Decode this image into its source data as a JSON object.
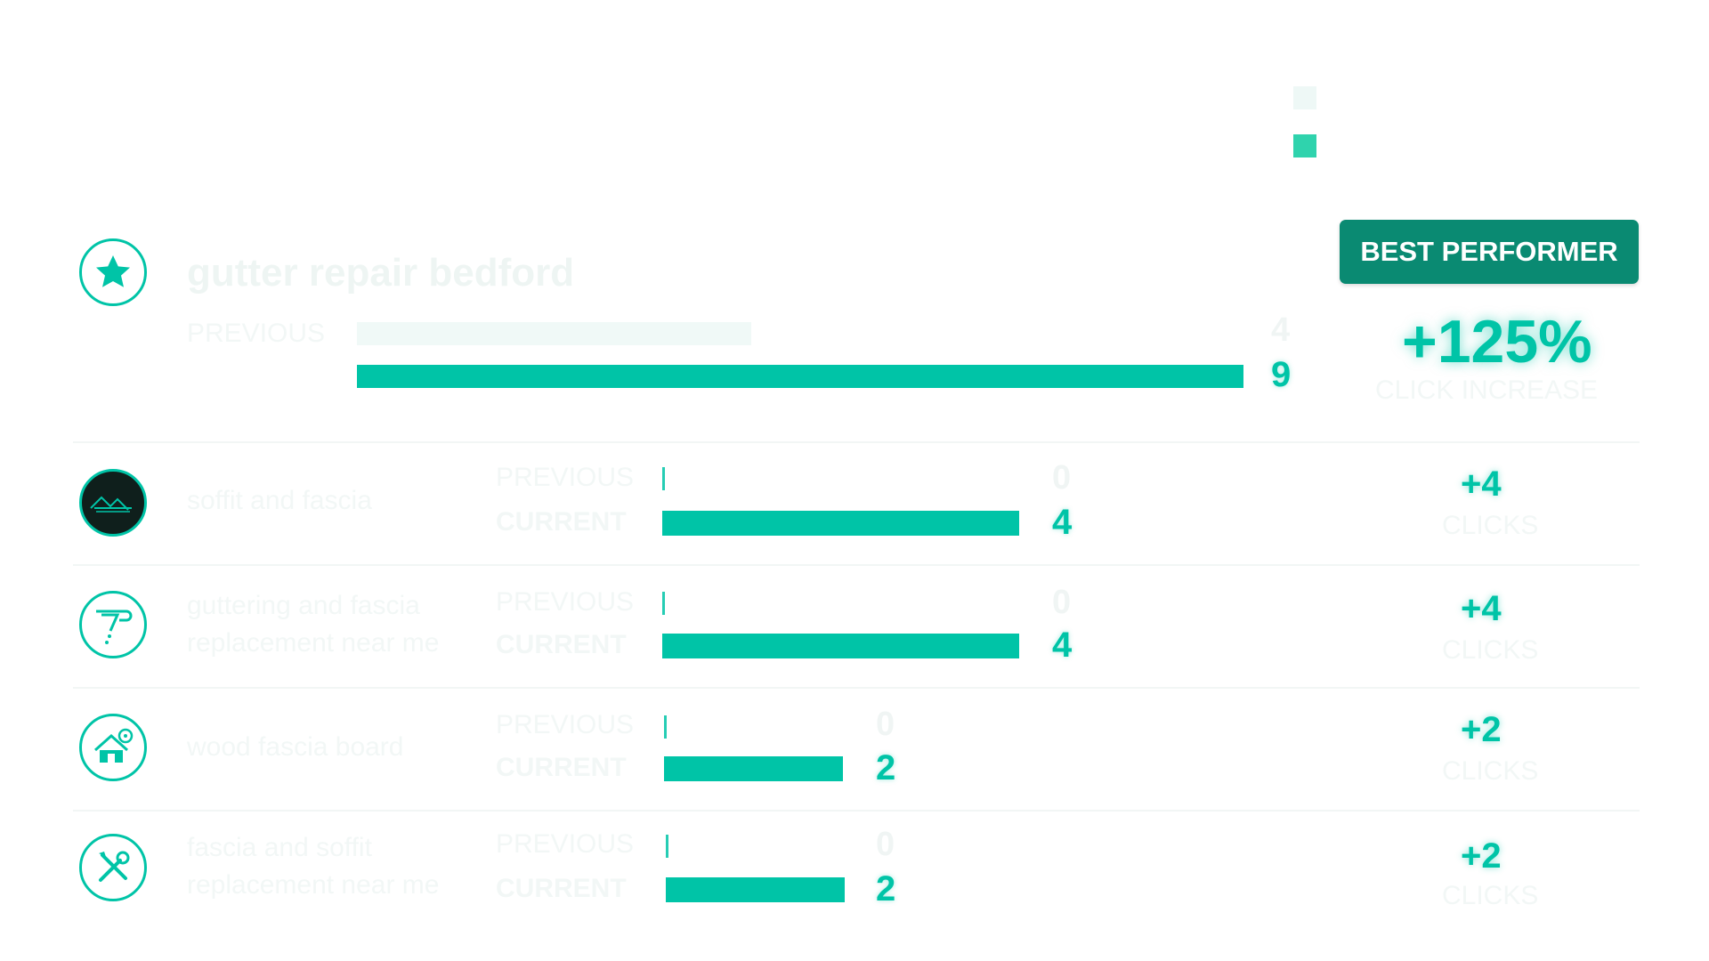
{
  "legend": {
    "previous_color": "#eef8f6",
    "current_color": "#2fd3ad"
  },
  "best_performer": {
    "badge": "BEST PERFORMER",
    "percent": "+125%",
    "percent_label": "CLICK INCREASE"
  },
  "chart_data": {
    "type": "bar",
    "orientation": "horizontal",
    "series_names": [
      "PREVIOUS",
      "CURRENT"
    ],
    "units": "CLICKS",
    "rows": [
      {
        "keyword": [
          "gutter repair bedford"
        ],
        "icon": "star-icon",
        "previous": 4,
        "current": 9,
        "delta": "+125%",
        "delta_label": "CLICK INCREASE",
        "featured": true
      },
      {
        "keyword": [
          "soffit and fascia"
        ],
        "icon": "roof-icon",
        "previous": 0,
        "current": 4,
        "delta": "+4",
        "delta_label": "CLICKS"
      },
      {
        "keyword": [
          "guttering and fascia",
          "replacement near me"
        ],
        "icon": "gutter-icon",
        "previous": 0,
        "current": 4,
        "delta": "+4",
        "delta_label": "CLICKS"
      },
      {
        "keyword": [
          "wood fascia board"
        ],
        "icon": "house-gear-icon",
        "previous": 0,
        "current": 2,
        "delta": "+2",
        "delta_label": "CLICKS"
      },
      {
        "keyword": [
          "fascia and soffit",
          "replacement near me"
        ],
        "icon": "tools-icon",
        "previous": 0,
        "current": 2,
        "delta": "+2",
        "delta_label": "CLICKS"
      }
    ],
    "scale_max": 9,
    "colors": {
      "previous": "#f0f9f7",
      "current": "#00c4a7"
    }
  }
}
